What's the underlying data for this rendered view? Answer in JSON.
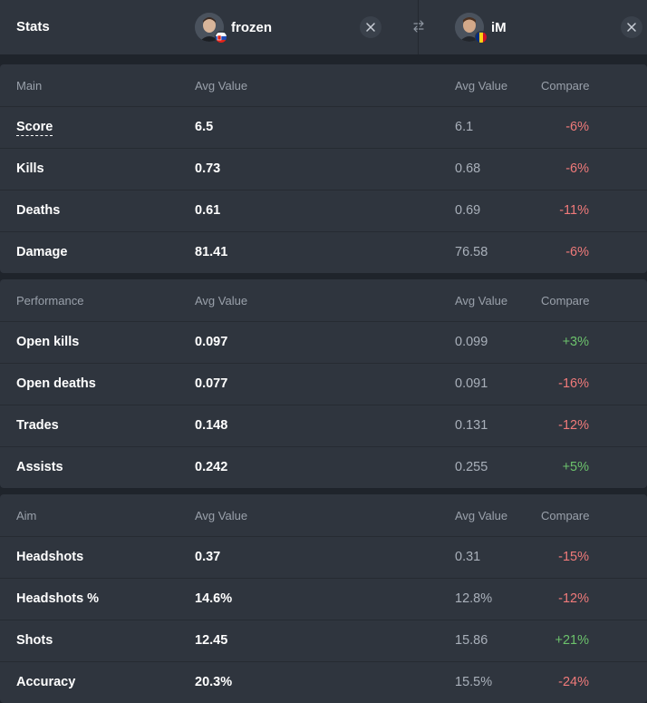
{
  "header": {
    "title": "Stats",
    "player1": {
      "name": "frozen",
      "flag": "Slovakia"
    },
    "player2": {
      "name": "iM",
      "flag": "Romania"
    }
  },
  "sections": [
    {
      "title": "Main",
      "col_avg1": "Avg Value",
      "col_avg2": "Avg Value",
      "col_compare": "Compare",
      "rows": [
        {
          "label": "Score",
          "v1": "6.5",
          "v2": "6.1",
          "compare": "-6%",
          "trend": "neg"
        },
        {
          "label": "Kills",
          "v1": "0.73",
          "v2": "0.68",
          "compare": "-6%",
          "trend": "neg"
        },
        {
          "label": "Deaths",
          "v1": "0.61",
          "v2": "0.69",
          "compare": "-11%",
          "trend": "neg"
        },
        {
          "label": "Damage",
          "v1": "81.41",
          "v2": "76.58",
          "compare": "-6%",
          "trend": "neg"
        }
      ]
    },
    {
      "title": "Performance",
      "col_avg1": "Avg Value",
      "col_avg2": "Avg Value",
      "col_compare": "Compare",
      "rows": [
        {
          "label": "Open kills",
          "v1": "0.097",
          "v2": "0.099",
          "compare": "+3%",
          "trend": "pos"
        },
        {
          "label": "Open deaths",
          "v1": "0.077",
          "v2": "0.091",
          "compare": "-16%",
          "trend": "neg"
        },
        {
          "label": "Trades",
          "v1": "0.148",
          "v2": "0.131",
          "compare": "-12%",
          "trend": "neg"
        },
        {
          "label": "Assists",
          "v1": "0.242",
          "v2": "0.255",
          "compare": "+5%",
          "trend": "pos"
        }
      ]
    },
    {
      "title": "Aim",
      "col_avg1": "Avg Value",
      "col_avg2": "Avg Value",
      "col_compare": "Compare",
      "rows": [
        {
          "label": "Headshots",
          "v1": "0.37",
          "v2": "0.31",
          "compare": "-15%",
          "trend": "neg"
        },
        {
          "label": "Headshots %",
          "v1": "14.6%",
          "v2": "12.8%",
          "compare": "-12%",
          "trend": "neg"
        },
        {
          "label": "Shots",
          "v1": "12.45",
          "v2": "15.86",
          "compare": "+21%",
          "trend": "pos"
        },
        {
          "label": "Accuracy",
          "v1": "20.3%",
          "v2": "15.5%",
          "compare": "-24%",
          "trend": "neg"
        }
      ]
    }
  ],
  "colors": {
    "background": "#1f242b",
    "panel": "#2f353e",
    "negative": "#f07a7a",
    "positive": "#6cc26c"
  },
  "icons": [
    "close-icon",
    "swap-icon"
  ]
}
